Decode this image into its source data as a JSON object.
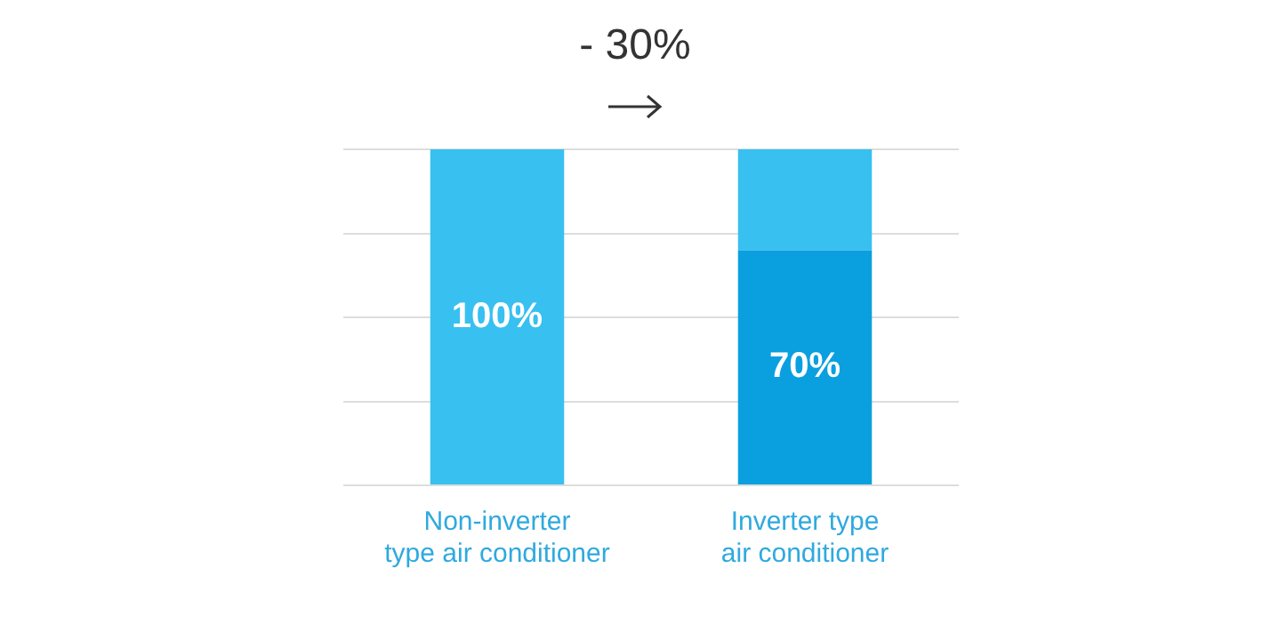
{
  "chart_data": {
    "type": "bar",
    "stacked": true,
    "categories": [
      "Non-inverter\ntype air conditioner",
      "Inverter type\nair conditioner"
    ],
    "series": [
      {
        "colors": [
          "#38c0f0",
          "#0aa0e0"
        ],
        "values": [
          100,
          70
        ],
        "value_labels": [
          "100%",
          "70%"
        ]
      },
      {
        "color": "#38c0f0",
        "values": [
          null,
          30
        ]
      }
    ],
    "ylim": [
      0,
      100
    ],
    "yticks": [
      {
        "value": 0,
        "label": null
      },
      {
        "value": 25,
        "label": null
      },
      {
        "value": 50,
        "label": null
      },
      {
        "value": 75,
        "label": null
      },
      {
        "value": 100,
        "label": null
      }
    ],
    "grid": "y",
    "annotations": [
      "- 30%"
    ]
  }
}
